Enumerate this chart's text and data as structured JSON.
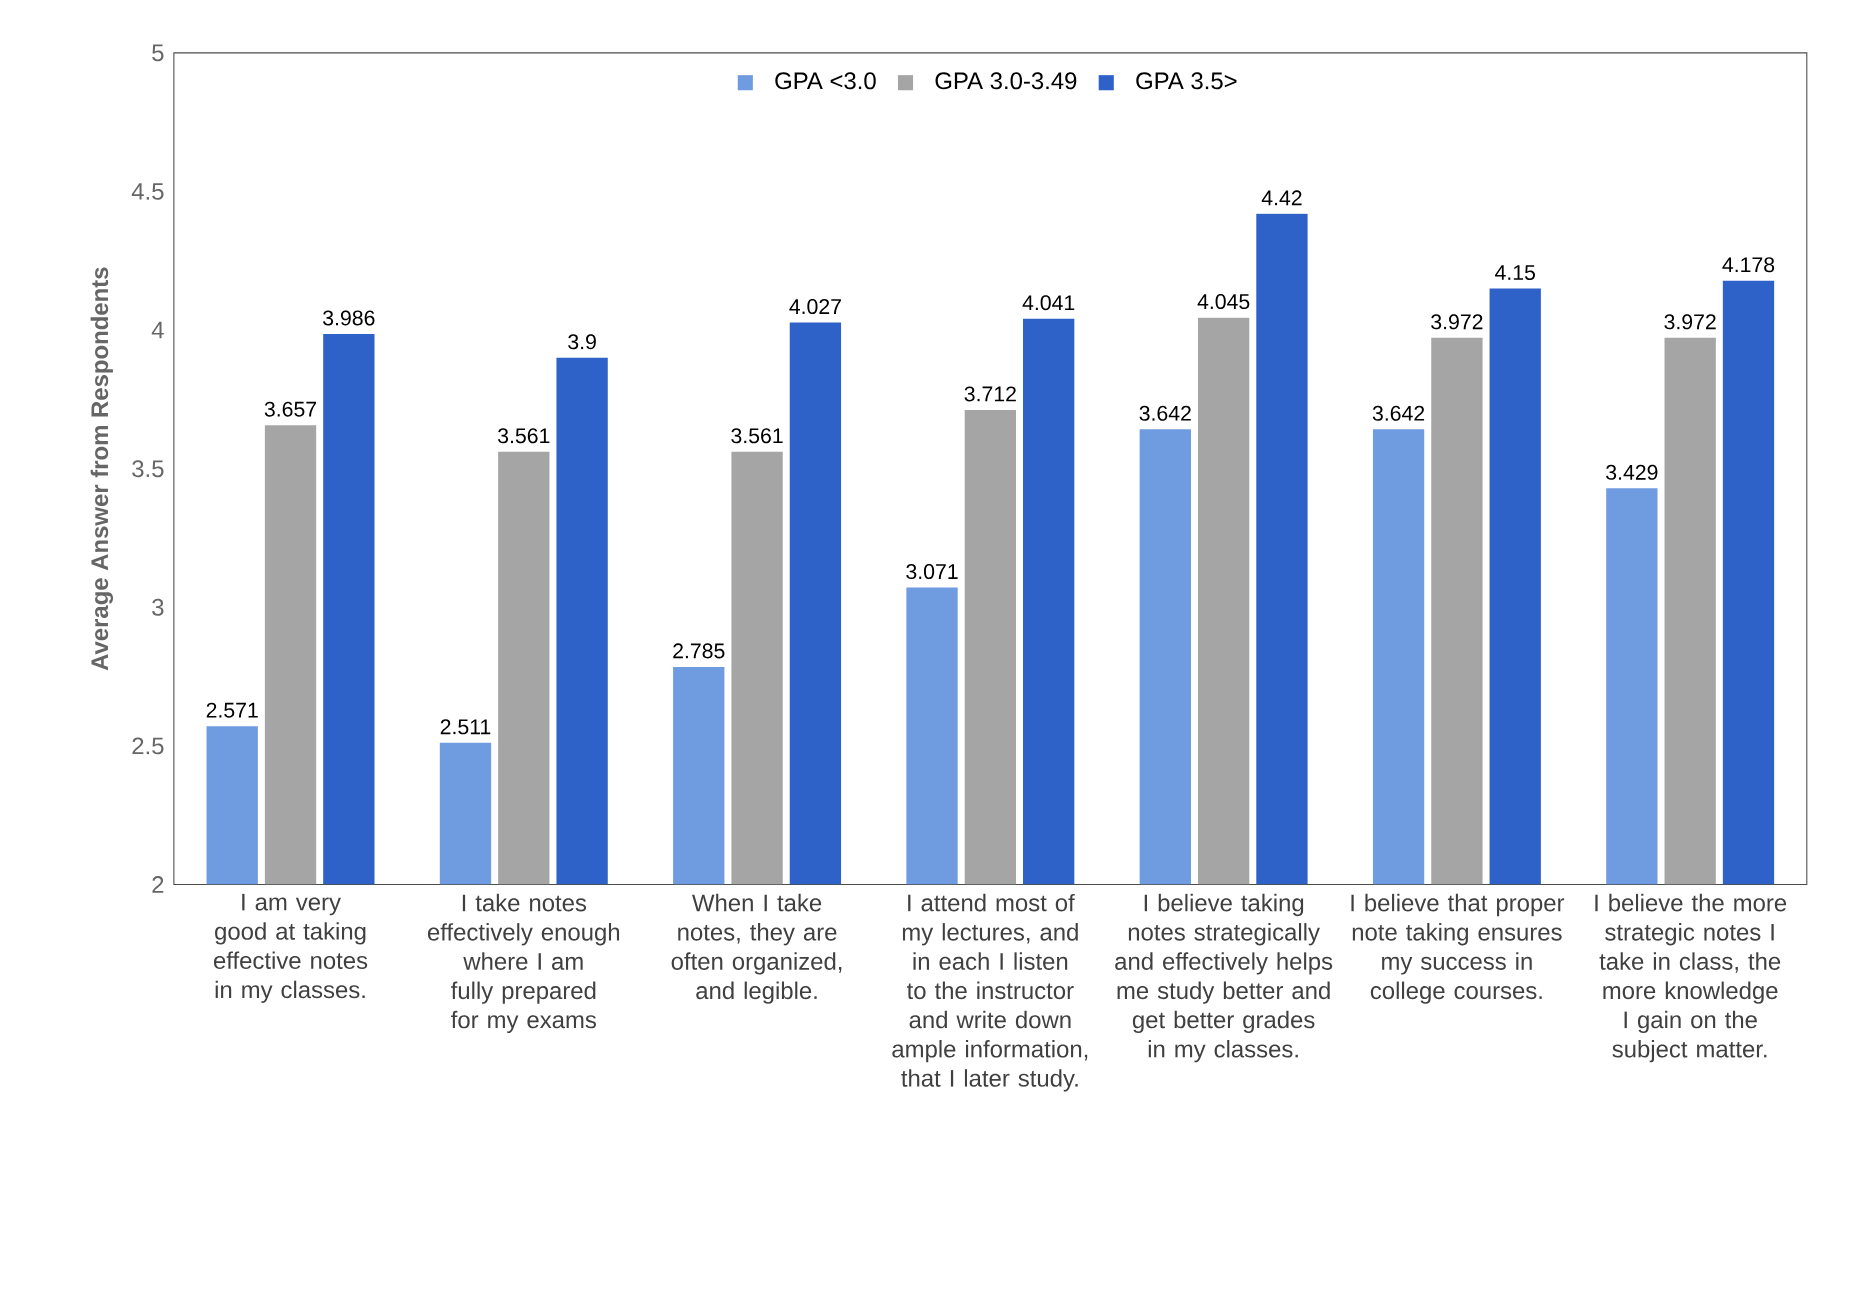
{
  "chart_data": {
    "type": "bar",
    "ylabel": "Average Answer from Respondents",
    "categories": [
      "I am very good at taking effective notes in my classes.",
      "I take notes effectively enough where I am fully prepared for my exams",
      "When I take notes, they are often organized, and legible.",
      "I attend most of my lectures, and in each I listen to the instructor and write down ample information, that I later study.",
      "I believe taking notes strategically and effectively helps me study better and get better grades in my classes.",
      "I believe that proper note taking ensures my success in college courses.",
      "I believe the more strategic notes I take in class, the more knowledge I gain on the subject matter."
    ],
    "series": [
      {
        "name": "GPA <3.0",
        "color": "#6f9be0",
        "values": [
          2.571,
          2.511,
          2.785,
          3.071,
          3.642,
          3.642,
          3.429
        ]
      },
      {
        "name": "GPA 3.0-3.49",
        "color": "#a5a5a5",
        "values": [
          3.657,
          3.561,
          3.561,
          3.712,
          4.045,
          3.972,
          3.972
        ]
      },
      {
        "name": "GPA 3.5>",
        "color": "#2f62c8",
        "values": [
          3.986,
          3.9,
          4.027,
          4.041,
          4.42,
          4.15,
          4.178
        ]
      }
    ],
    "ylim": [
      2,
      5
    ],
    "yticks": [
      2,
      2.5,
      3,
      3.5,
      4,
      4.5,
      5
    ],
    "data_labels": true,
    "legend": "top",
    "grid": false
  }
}
